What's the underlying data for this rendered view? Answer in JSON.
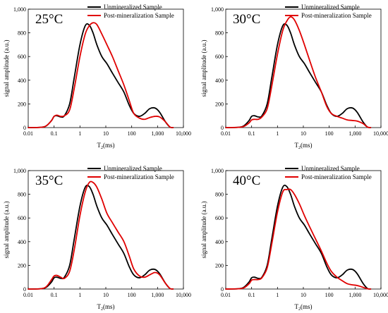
{
  "chart_data": [
    {
      "type": "line",
      "panel_label": "25°C",
      "xlabel": "T2(ms)",
      "ylabel": "signal amplitude (a.u.)",
      "x_scale": "log",
      "xlim": [
        0.01,
        10000
      ],
      "ylim": [
        0,
        1000
      ],
      "x_ticks": [
        "0.01",
        "0.1",
        "1",
        "10",
        "100",
        "1,000",
        "10,000"
      ],
      "y_ticks": [
        "0",
        "200",
        "400",
        "600",
        "800",
        "1,000"
      ],
      "legend_position": "top-right",
      "series": [
        {
          "name": "Unmineralized Sample",
          "color": "#000000",
          "x": [
            0.01,
            0.03,
            0.05,
            0.08,
            0.1,
            0.13,
            0.18,
            0.25,
            0.4,
            0.6,
            1.0,
            1.6,
            2.3,
            3.2,
            4.5,
            7,
            11,
            18,
            30,
            50,
            80,
            120,
            200,
            320,
            500,
            800,
            1200,
            2000,
            3000,
            4000
          ],
          "y": [
            0,
            2,
            15,
            60,
            95,
            100,
            90,
            100,
            200,
            420,
            700,
            860,
            865,
            800,
            700,
            600,
            540,
            460,
            380,
            300,
            190,
            120,
            95,
            120,
            160,
            165,
            130,
            50,
            5,
            0
          ]
        },
        {
          "name": "Post-mineralization Sample",
          "color": "#e00000",
          "x": [
            0.01,
            0.03,
            0.05,
            0.08,
            0.1,
            0.13,
            0.18,
            0.25,
            0.4,
            0.6,
            1.0,
            1.6,
            2.3,
            3.2,
            4.5,
            7,
            11,
            18,
            30,
            50,
            80,
            120,
            200,
            320,
            500,
            800,
            1200,
            2000,
            3000,
            4000
          ],
          "y": [
            0,
            2,
            15,
            60,
            95,
            105,
            95,
            100,
            150,
            330,
            600,
            790,
            860,
            885,
            870,
            790,
            700,
            600,
            480,
            360,
            230,
            120,
            80,
            70,
            85,
            95,
            90,
            50,
            5,
            0
          ]
        }
      ]
    },
    {
      "type": "line",
      "panel_label": "30°C",
      "xlabel": "T2(ms)",
      "ylabel": "signal amplitude (a.u.)",
      "x_scale": "log",
      "xlim": [
        0.01,
        10000
      ],
      "ylim": [
        0,
        1000
      ],
      "x_ticks": [
        "0.01",
        "0.1",
        "1",
        "10",
        "100",
        "1,000",
        "10,000"
      ],
      "y_ticks": [
        "0",
        "200",
        "400",
        "600",
        "800",
        "1,000"
      ],
      "legend_position": "top-right",
      "series": [
        {
          "name": "Unmineralized Sample",
          "color": "#000000",
          "x": [
            0.01,
            0.03,
            0.05,
            0.08,
            0.1,
            0.13,
            0.18,
            0.25,
            0.4,
            0.6,
            1.0,
            1.6,
            2.3,
            3.2,
            4.5,
            7,
            11,
            18,
            30,
            50,
            80,
            120,
            200,
            320,
            500,
            800,
            1200,
            2000,
            3000,
            4000
          ],
          "y": [
            0,
            2,
            15,
            60,
            95,
            100,
            90,
            100,
            200,
            420,
            700,
            860,
            865,
            800,
            700,
            600,
            540,
            460,
            380,
            300,
            190,
            120,
            95,
            120,
            160,
            165,
            130,
            50,
            5,
            0
          ]
        },
        {
          "name": "Post-mineralization Sample",
          "color": "#e00000",
          "x": [
            0.01,
            0.03,
            0.05,
            0.08,
            0.1,
            0.13,
            0.18,
            0.25,
            0.4,
            0.6,
            1.0,
            1.6,
            2.3,
            3.2,
            4.5,
            7,
            11,
            18,
            30,
            50,
            80,
            120,
            200,
            320,
            500,
            800,
            1200,
            2000,
            3000,
            4000
          ],
          "y": [
            0,
            2,
            10,
            40,
            65,
            70,
            70,
            90,
            160,
            350,
            620,
            820,
            900,
            935,
            910,
            820,
            700,
            560,
            420,
            300,
            180,
            120,
            95,
            80,
            65,
            60,
            55,
            35,
            5,
            0
          ]
        }
      ]
    },
    {
      "type": "line",
      "panel_label": "35°C",
      "xlabel": "T2(ms)",
      "ylabel": "signal amplitude (a.u.)",
      "x_scale": "log",
      "xlim": [
        0.01,
        10000
      ],
      "ylim": [
        0,
        1000
      ],
      "x_ticks": [
        "0.01",
        "0.1",
        "1",
        "10",
        "100",
        "1,000",
        "10,000"
      ],
      "y_ticks": [
        "0",
        "200",
        "400",
        "600",
        "800",
        "1,000"
      ],
      "legend_position": "top-right",
      "series": [
        {
          "name": "Unmineralized Sample",
          "color": "#000000",
          "x": [
            0.01,
            0.03,
            0.05,
            0.08,
            0.1,
            0.13,
            0.18,
            0.25,
            0.4,
            0.6,
            1.0,
            1.6,
            2.3,
            3.2,
            4.5,
            7,
            11,
            18,
            30,
            50,
            80,
            120,
            200,
            320,
            500,
            800,
            1200,
            2000,
            3000,
            4000
          ],
          "y": [
            0,
            2,
            15,
            60,
            95,
            100,
            90,
            100,
            200,
            420,
            700,
            860,
            865,
            800,
            700,
            600,
            540,
            460,
            380,
            300,
            190,
            120,
            95,
            120,
            160,
            165,
            130,
            50,
            5,
            0
          ]
        },
        {
          "name": "Post-mineralization Sample",
          "color": "#e00000",
          "x": [
            0.01,
            0.03,
            0.05,
            0.08,
            0.1,
            0.13,
            0.18,
            0.25,
            0.4,
            0.6,
            1.0,
            1.6,
            2.3,
            3.2,
            4.5,
            7,
            11,
            18,
            30,
            50,
            80,
            120,
            200,
            320,
            500,
            800,
            1200,
            2000,
            3000,
            4000
          ],
          "y": [
            0,
            2,
            20,
            80,
            110,
            115,
            100,
            90,
            150,
            330,
            620,
            820,
            900,
            900,
            860,
            760,
            640,
            560,
            480,
            400,
            280,
            170,
            110,
            100,
            120,
            140,
            120,
            50,
            5,
            0
          ]
        }
      ]
    },
    {
      "type": "line",
      "panel_label": "40°C",
      "xlabel": "T2(ms)",
      "ylabel": "signal amplitude (a.u.)",
      "x_scale": "log",
      "xlim": [
        0.01,
        10000
      ],
      "ylim": [
        0,
        1000
      ],
      "x_ticks": [
        "0.01",
        "0.1",
        "1",
        "10",
        "100",
        "1,000",
        "10,000"
      ],
      "y_ticks": [
        "0",
        "200",
        "400",
        "600",
        "800",
        "1,000"
      ],
      "legend_position": "top-right",
      "series": [
        {
          "name": "Unmineralized Sample",
          "color": "#000000",
          "x": [
            0.01,
            0.03,
            0.05,
            0.08,
            0.1,
            0.13,
            0.18,
            0.25,
            0.4,
            0.6,
            1.0,
            1.6,
            2.3,
            3.2,
            4.5,
            7,
            11,
            18,
            30,
            50,
            80,
            120,
            200,
            320,
            500,
            800,
            1200,
            2000,
            3000,
            4000
          ],
          "y": [
            0,
            2,
            15,
            60,
            95,
            100,
            90,
            100,
            200,
            420,
            700,
            860,
            865,
            800,
            700,
            600,
            540,
            460,
            380,
            300,
            190,
            120,
            95,
            120,
            160,
            165,
            130,
            50,
            5,
            0
          ]
        },
        {
          "name": "Post-mineralization Sample",
          "color": "#e00000",
          "x": [
            0.01,
            0.03,
            0.05,
            0.08,
            0.1,
            0.13,
            0.18,
            0.25,
            0.4,
            0.6,
            1.0,
            1.6,
            2.3,
            3.2,
            4.5,
            7,
            11,
            18,
            30,
            50,
            80,
            120,
            200,
            320,
            500,
            800,
            1200,
            2000,
            3000,
            4000
          ],
          "y": [
            0,
            2,
            10,
            45,
            75,
            80,
            80,
            95,
            180,
            380,
            650,
            820,
            840,
            840,
            800,
            720,
            620,
            520,
            420,
            320,
            220,
            150,
            100,
            70,
            45,
            35,
            30,
            15,
            2,
            0
          ]
        }
      ]
    }
  ]
}
